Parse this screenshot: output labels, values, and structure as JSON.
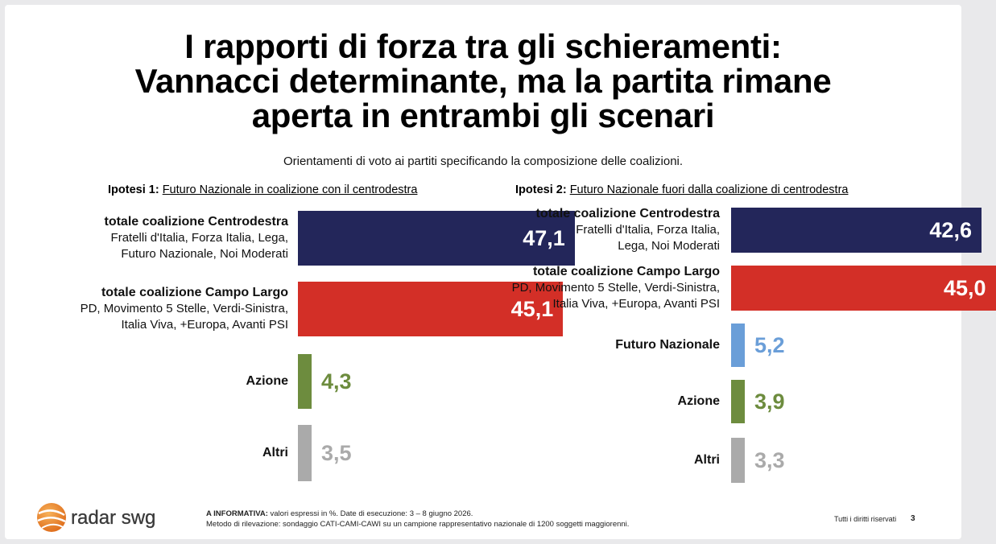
{
  "title_lines": [
    "I rapporti di forza tra gli schieramenti:",
    "Vannacci determinante, ma la partita rimane",
    "aperta in entrambi gli scenari"
  ],
  "subtitle": "Orientamenti di voto ai partiti specificando la composizione delle coalizioni.",
  "colors": {
    "centrodestra": "#23265a",
    "campo_largo": "#d32f27",
    "futuro_nazionale": "#6a9ed8",
    "azione": "#6d8c3e",
    "altri": "#aaaaaa"
  },
  "chart_data": [
    {
      "type": "bar",
      "orientation": "horizontal",
      "heading_prefix": "Ipotesi 1:",
      "heading": "Futuro Nazionale in coalizione con il centrodestra",
      "xlim": [
        0,
        50
      ],
      "categories": [
        {
          "label": "totale coalizione Centrodestra",
          "sub": [
            "Fratelli d'Italia, Forza Italia, Lega,",
            "Futuro Nazionale, Noi Moderati"
          ],
          "value": 47.1,
          "display": "47,1",
          "color": "#23265a"
        },
        {
          "label": "totale coalizione Campo Largo",
          "sub": [
            "PD, Movimento 5 Stelle, Verdi-Sinistra,",
            "Italia Viva, +Europa, Avanti PSI"
          ],
          "value": 45.1,
          "display": "45,1",
          "color": "#d32f27"
        },
        {
          "label": "Azione",
          "sub": [],
          "value": 4.3,
          "display": "4,3",
          "color": "#6d8c3e"
        },
        {
          "label": "Altri",
          "sub": [],
          "value": 3.5,
          "display": "3,5",
          "color": "#aaaaaa"
        }
      ]
    },
    {
      "type": "bar",
      "orientation": "horizontal",
      "heading_prefix": "Ipotesi 2:",
      "heading": "Futuro Nazionale fuori dalla coalizione di centrodestra",
      "xlim": [
        0,
        50
      ],
      "categories": [
        {
          "label": "totale coalizione Centrodestra",
          "sub": [
            "Fratelli d'Italia, Forza Italia,",
            "Lega, Noi Moderati"
          ],
          "value": 42.6,
          "display": "42,6",
          "color": "#23265a"
        },
        {
          "label": "totale coalizione Campo Largo",
          "sub": [
            "PD, Movimento 5 Stelle, Verdi-Sinistra,",
            "Italia Viva, +Europa, Avanti PSI"
          ],
          "value": 45.0,
          "display": "45,0",
          "color": "#d32f27"
        },
        {
          "label": "Futuro Nazionale",
          "sub": [],
          "value": 5.2,
          "display": "5,2",
          "color": "#6a9ed8"
        },
        {
          "label": "Azione",
          "sub": [],
          "value": 3.9,
          "display": "3,9",
          "color": "#6d8c3e"
        },
        {
          "label": "Altri",
          "sub": [],
          "value": 3.3,
          "display": "3,3",
          "color": "#aaaaaa"
        }
      ]
    }
  ],
  "footer": {
    "logo_text": "radar swg",
    "note_bold": "A INFORMATIVA:",
    "note_line1": " valori espressi in %. Date di esecuzione: 3 – 8 giugno 2026.",
    "note_line2": "Metodo di rilevazione: sondaggio CATI-CAMI-CAWI su un campione rappresentativo nazionale di 1200 soggetti maggiorenni.",
    "rights": "Tutti i diritti riservati",
    "page": "3"
  }
}
